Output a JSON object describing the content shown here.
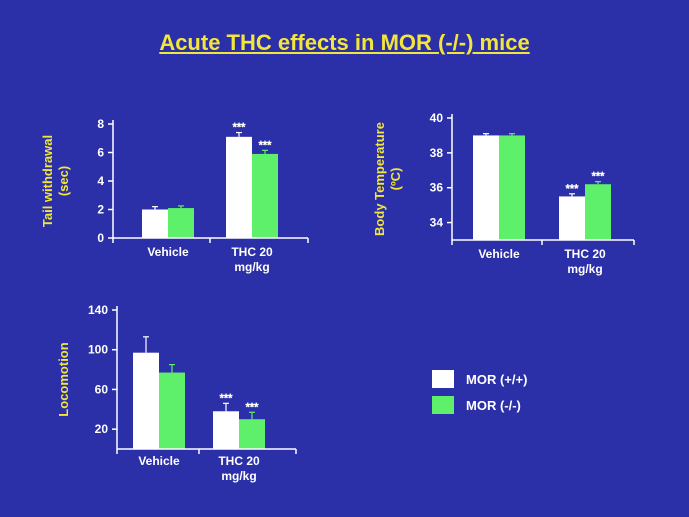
{
  "title": "Acute THC effects in MOR (-/-) mice",
  "colors": {
    "background": "#2b2fa8",
    "title": "#f2e63a",
    "wildtype": "#ffffff",
    "knockout": "#5ef06a"
  },
  "legend": [
    {
      "label": "MOR (+/+)",
      "color": "#ffffff"
    },
    {
      "label": "MOR (-/-)",
      "color": "#5ef06a"
    }
  ],
  "chart_data": [
    {
      "type": "bar",
      "ylabel": [
        "Tail withdrawal",
        "(sec)"
      ],
      "categories": [
        [
          "Vehicle"
        ],
        [
          "THC 20",
          "mg/kg"
        ]
      ],
      "ylim": [
        0,
        8
      ],
      "yticks": [
        0,
        2,
        4,
        6,
        8
      ],
      "series": [
        {
          "name": "MOR (+/+)",
          "values": [
            2.0,
            7.1
          ],
          "errors": [
            0.2,
            0.3
          ]
        },
        {
          "name": "MOR (-/-)",
          "values": [
            2.1,
            5.9
          ],
          "errors": [
            0.15,
            0.25
          ]
        }
      ],
      "annotations": [
        [
          "",
          "***"
        ],
        [
          "",
          "***"
        ]
      ]
    },
    {
      "type": "bar",
      "ylabel": [
        "Body Temperature",
        "(ºC)"
      ],
      "categories": [
        [
          "Vehicle"
        ],
        [
          "THC 20",
          "mg/kg"
        ]
      ],
      "ylim": [
        33,
        40
      ],
      "yticks": [
        34,
        36,
        38,
        40
      ],
      "series": [
        {
          "name": "MOR (+/+)",
          "values": [
            39.0,
            35.5
          ],
          "errors": [
            0.1,
            0.15
          ]
        },
        {
          "name": "MOR (-/-)",
          "values": [
            39.0,
            36.2
          ],
          "errors": [
            0.1,
            0.15
          ]
        }
      ],
      "annotations": [
        [
          "",
          "***"
        ],
        [
          "",
          "***"
        ]
      ]
    },
    {
      "type": "bar",
      "ylabel": [
        "Locomotion"
      ],
      "categories": [
        [
          "Vehicle"
        ],
        [
          "THC 20",
          "mg/kg"
        ]
      ],
      "ylim": [
        0,
        140
      ],
      "yticks": [
        20,
        60,
        100,
        140
      ],
      "series": [
        {
          "name": "MOR (+/+)",
          "values": [
            97,
            38
          ],
          "errors": [
            16,
            8
          ]
        },
        {
          "name": "MOR (-/-)",
          "values": [
            77,
            30
          ],
          "errors": [
            8,
            7
          ]
        }
      ],
      "annotations": [
        [
          "",
          "***"
        ],
        [
          "",
          "***"
        ]
      ]
    }
  ]
}
